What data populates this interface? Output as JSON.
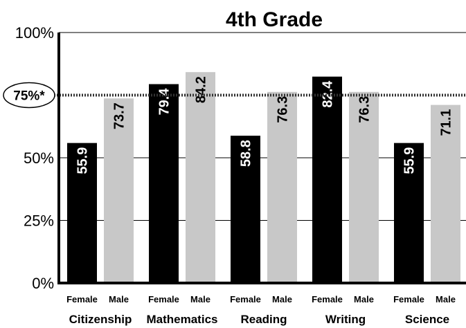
{
  "chart_data": {
    "type": "bar",
    "title": "4th Grade",
    "categories": [
      "Citizenship",
      "Mathematics",
      "Reading",
      "Writing",
      "Science"
    ],
    "series": [
      {
        "name": "Female",
        "values": [
          55.9,
          79.4,
          58.8,
          82.4,
          55.9
        ],
        "color": "#000000",
        "label_color": "#ffffff"
      },
      {
        "name": "Male",
        "values": [
          73.7,
          84.2,
          76.3,
          76.3,
          71.1
        ],
        "color": "#c8c8c8",
        "label_color": "#000000"
      }
    ],
    "ylim": [
      0,
      100
    ],
    "yticks": [
      "0%",
      "25%",
      "50%",
      "75%",
      "100%"
    ],
    "ytick_values": [
      0,
      25,
      50,
      75,
      100
    ],
    "reference_line": {
      "value": 75,
      "label": "75%*",
      "style": "dotted"
    },
    "grid": true,
    "xlabel": "",
    "ylabel": ""
  }
}
